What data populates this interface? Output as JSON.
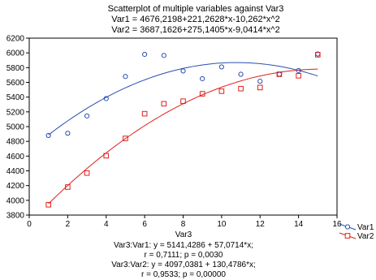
{
  "chart_data": {
    "type": "scatter",
    "title_lines": [
      "Scatterplot of multiple variables against Var3",
      "Var1 = 4676,2198+221,2628*x-10,262*x^2",
      "Var2 = 3687,1626+275,1405*x-9,0414*x^2"
    ],
    "xlabel": "Var3",
    "ylabel": "",
    "xlim": [
      0,
      16
    ],
    "ylim": [
      3800,
      6200
    ],
    "xticks": [
      0,
      2,
      4,
      6,
      8,
      10,
      12,
      14,
      16
    ],
    "yticks": [
      3800,
      4000,
      4200,
      4400,
      4600,
      4800,
      5000,
      5200,
      5400,
      5600,
      5800,
      6000,
      6200
    ],
    "grid": false,
    "legend_position": "right",
    "series": [
      {
        "name": "Var1",
        "marker": "circle",
        "color": "#2a4fb0",
        "x": [
          1,
          2,
          3,
          4,
          5,
          6,
          7,
          8,
          9,
          10,
          11,
          12,
          13,
          14,
          15
        ],
        "y": [
          4880,
          4910,
          5145,
          5380,
          5680,
          5980,
          5965,
          5755,
          5650,
          5810,
          5710,
          5615,
          5710,
          5760,
          5985
        ],
        "fit": {
          "type": "quadratic",
          "coef": [
            4676.2198,
            221.2628,
            -10.262
          ]
        }
      },
      {
        "name": "Var2",
        "marker": "square",
        "color": "#e0201c",
        "x": [
          1,
          2,
          3,
          4,
          5,
          6,
          7,
          8,
          9,
          10,
          11,
          12,
          13,
          14,
          15
        ],
        "y": [
          3940,
          4180,
          4370,
          4605,
          4840,
          5175,
          5310,
          5345,
          5445,
          5480,
          5515,
          5530,
          5710,
          5690,
          5975
        ],
        "fit": {
          "type": "quadratic",
          "coef": [
            3687.1626,
            275.1405,
            -9.0414
          ]
        }
      }
    ],
    "stats_lines": [
      "Var3:Var1:   y = 5141,4286 + 57,0714*x;",
      "r = 0,7111; p = 0,0030",
      "Var3:Var2:   y = 4097,0381 + 130,4786*x;",
      "r = 0,9533; p = 0,00000"
    ]
  }
}
